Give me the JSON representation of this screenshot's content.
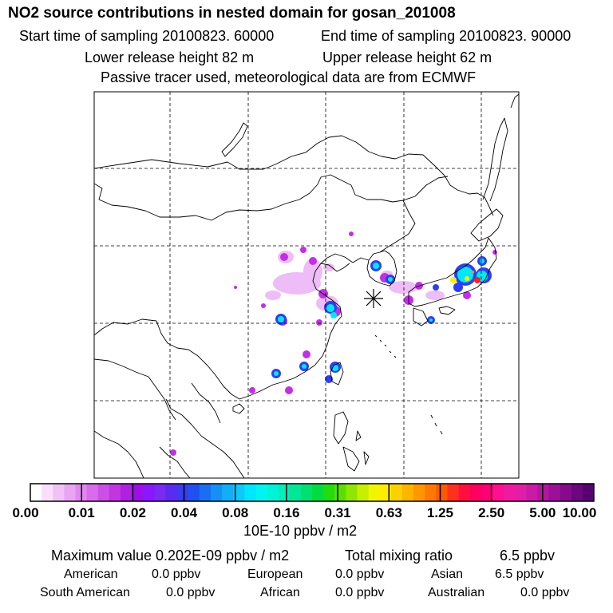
{
  "header": {
    "title": "NO2 source contributions in nested domain for gosan_201008",
    "start": "Start time of sampling 20100823. 60000",
    "end": "End time of sampling 20100823. 90000",
    "lower": "Lower release height   82 m",
    "upper": "Upper release height   62 m",
    "passive": "Passive tracer used, meteorological data are from ECMWF"
  },
  "legend": {
    "ticks": [
      "0.00",
      "0.01",
      "0.02",
      "0.04",
      "0.08",
      "0.16",
      "0.31",
      "0.63",
      "1.25",
      "2.50",
      "5.00",
      "10.00"
    ],
    "units": "10E-10 ppbv / m2",
    "colors": [
      "#ffffff",
      "#f8e0fa",
      "#f0c2f5",
      "#e8a6f2",
      "#e188ef",
      "#d86cea",
      "#cc4fe6",
      "#c136e0",
      "#b020e0",
      "#9a10e6",
      "#8a18ff",
      "#7a2af2",
      "#5a2cf0",
      "#3b3bf0",
      "#2050f0",
      "#1a6ef2",
      "#1590f5",
      "#12aef7",
      "#10c8f8",
      "#00e6ff",
      "#00f5f0",
      "#00f2d8",
      "#00eeb8",
      "#00e896",
      "#00e070",
      "#00dc40",
      "#22dc10",
      "#58e000",
      "#90e600",
      "#c8ee00",
      "#f2f500",
      "#ffec00",
      "#ffd000",
      "#ffb400",
      "#ff9600",
      "#ff7800",
      "#ff5a00",
      "#ff3020",
      "#ff1040",
      "#ff0060",
      "#ff0078",
      "#ff1090",
      "#f01aa0",
      "#e01ea8",
      "#cc1aa8",
      "#b414a0",
      "#9c1098",
      "#840c8c",
      "#6e0680",
      "#580272"
    ]
  },
  "map": {
    "receptor": "gosan",
    "border_color": "#000000",
    "grid": "dashed"
  },
  "stats": {
    "max_label": "Maximum value  0.202E-09 ppbv / m2",
    "total_label": "Total mixing ratio",
    "total_value": "6.5 ppbv",
    "regions": [
      {
        "name": "American",
        "value": "0.0 ppbv"
      },
      {
        "name": "European",
        "value": "0.0 ppbv"
      },
      {
        "name": "Asian",
        "value": "6.5 ppbv"
      },
      {
        "name": "South American",
        "value": "0.0 ppbv"
      },
      {
        "name": "African",
        "value": "0.0 ppbv"
      },
      {
        "name": "Australian",
        "value": "0.0 ppbv"
      }
    ]
  }
}
